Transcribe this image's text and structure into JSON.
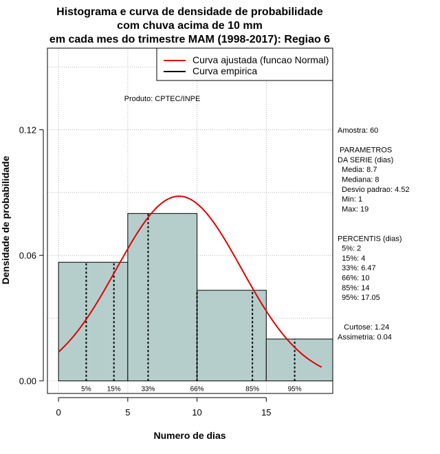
{
  "chart_data": {
    "type": "histogram",
    "title_lines": [
      "Histograma e curva de densidade de probabilidade",
      "com chuva acima de 10 mm",
      "em cada mes do trimestre MAM (1998-2017): Regiao 6"
    ],
    "xlabel": "Numero de dias",
    "ylabel": "Densidade de probabilidade",
    "xlim": [
      -0.8,
      19.8
    ],
    "ylim": [
      -0.006,
      0.159
    ],
    "x_ticks": [
      0,
      5,
      10,
      15
    ],
    "x_tick_labels": [
      "0",
      "5",
      "10",
      "15"
    ],
    "y_ticks": [
      0.0,
      0.06,
      0.12
    ],
    "y_tick_labels": [
      "0.00",
      "0.06",
      "0.12"
    ],
    "grid": true,
    "bins": [
      {
        "x0": 0,
        "x1": 5,
        "density": 0.0567
      },
      {
        "x0": 5,
        "x1": 10,
        "density": 0.08
      },
      {
        "x0": 10,
        "x1": 15,
        "density": 0.0433
      },
      {
        "x0": 15,
        "x1": 20,
        "density": 0.02
      }
    ],
    "bar_color": "#b5cecc",
    "normal_curve": {
      "mean": 8.7,
      "sd": 4.52,
      "x_range": [
        0,
        19
      ],
      "color": "#dd0000"
    },
    "percentiles": [
      {
        "label": "5%",
        "value": 2
      },
      {
        "label": "15%",
        "value": 4
      },
      {
        "label": "33%",
        "value": 6.47
      },
      {
        "label": "66%",
        "value": 10
      },
      {
        "label": "85%",
        "value": 14
      },
      {
        "label": "95%",
        "value": 17.05
      }
    ],
    "legend": {
      "position": "top-right",
      "entries": [
        {
          "label": "Curva ajustada (funcao Normal)",
          "color": "#dd0000"
        },
        {
          "label": "Curva empirica",
          "color": "#000000"
        }
      ]
    },
    "annotation_produto": "Produto: CPTEC/INPE",
    "side_panel": [
      "Amostra: 60",
      "",
      " PARAMETROS",
      "DA SERIE (dias)",
      "  Media: 8.7",
      "  Mediana: 8",
      "  Desvio padrao: 4.52",
      "  Min: 1",
      "  Max: 19",
      "",
      "",
      "PERCENTIS (dias)",
      "  5%: 2",
      "  15%: 4",
      "  33%: 6.47",
      "  66%: 10",
      "  85%: 14",
      "  95%: 17.05",
      "",
      "",
      "   Curtose: 1.24",
      "Assimetria: 0.04"
    ]
  }
}
